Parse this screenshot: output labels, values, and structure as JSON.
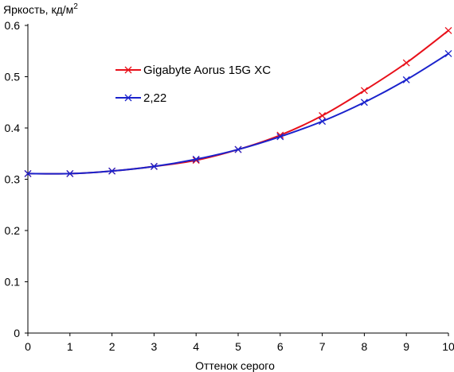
{
  "chart_data": {
    "type": "line",
    "ylabel": "Яркость, кд/м",
    "ylabel_superscript": "2",
    "xlabel": "Оттенок серого",
    "xlim": [
      0,
      10
    ],
    "ylim": [
      0,
      0.6
    ],
    "x_ticks": [
      0,
      1,
      2,
      3,
      4,
      5,
      6,
      7,
      8,
      9,
      10
    ],
    "y_ticks": [
      0,
      0.1,
      0.2,
      0.3,
      0.4,
      0.5,
      0.6
    ],
    "y_tick_labels": [
      "0",
      "0.1",
      "0.2",
      "0.3",
      "0.4",
      "0.5",
      "0.6"
    ],
    "grid": false,
    "legend_position": "top-center",
    "series": [
      {
        "name": "Gigabyte Aorus 15G XC",
        "color": "#e8101a",
        "marker": "x",
        "x": [
          0,
          1,
          2,
          3,
          4,
          5,
          6,
          7,
          8,
          9,
          10
        ],
        "y": [
          0.311,
          0.311,
          0.316,
          0.325,
          0.337,
          0.358,
          0.386,
          0.424,
          0.473,
          0.527,
          0.59
        ]
      },
      {
        "name": "2,22",
        "color": "#1a22cc",
        "marker": "x",
        "x": [
          0,
          1,
          2,
          3,
          4,
          5,
          6,
          7,
          8,
          9,
          10
        ],
        "y": [
          0.311,
          0.311,
          0.316,
          0.325,
          0.339,
          0.358,
          0.383,
          0.413,
          0.45,
          0.494,
          0.545
        ]
      }
    ]
  }
}
